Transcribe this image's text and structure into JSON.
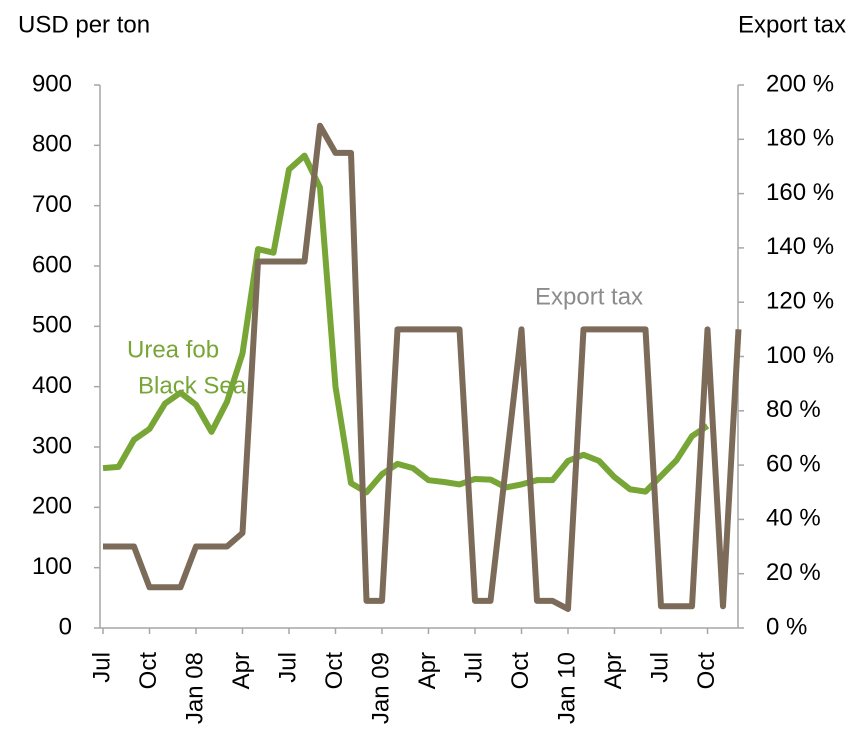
{
  "chart_data": {
    "type": "line",
    "y_label": "USD per ton",
    "y2_label": "Export tax",
    "annotations": [
      "Urea fob",
      "Black Sea",
      "Export tax"
    ],
    "categories": [
      "Jul",
      null,
      null,
      "Oct",
      null,
      null,
      "Jan 08",
      null,
      null,
      "Apr",
      null,
      null,
      "Jul",
      null,
      null,
      "Oct",
      null,
      null,
      "Jan 09",
      null,
      null,
      "Apr",
      null,
      null,
      "Jul",
      null,
      null,
      "Oct",
      null,
      null,
      "Jan 10",
      null,
      null,
      "Apr",
      null,
      null,
      "Jul",
      null,
      null,
      "Oct",
      null,
      null
    ],
    "series": [
      {
        "name": "Urea fob Black Sea",
        "color": "#77a636",
        "axis": "y",
        "values": [
          265,
          267,
          312,
          330,
          372,
          390,
          370,
          325,
          375,
          455,
          628,
          622,
          760,
          783,
          730,
          400,
          240,
          225,
          255,
          272,
          265,
          245,
          242,
          238,
          247,
          246,
          233,
          238,
          245,
          245,
          277,
          287,
          277,
          250,
          230,
          226,
          252,
          278,
          318,
          335,
          null,
          null
        ]
      },
      {
        "name": "Export tax",
        "color": "#7d6b5a",
        "axis": "y2",
        "values": [
          30,
          30,
          30,
          15,
          15,
          15,
          30,
          30,
          30,
          35,
          135,
          135,
          135,
          135,
          185,
          175,
          175,
          10,
          10,
          110,
          110,
          110,
          110,
          110,
          10,
          10,
          60,
          110,
          10,
          10,
          7,
          110,
          110,
          110,
          110,
          110,
          8,
          8,
          8,
          110,
          8,
          110
        ]
      }
    ],
    "ylim": [
      0,
      900
    ],
    "yticks": [
      0,
      100,
      200,
      300,
      400,
      500,
      600,
      700,
      800,
      900
    ],
    "y2lim": [
      0,
      200
    ],
    "y2ticks": [
      {
        "value": 0,
        "label": "0 %"
      },
      {
        "value": 20,
        "label": "20 %"
      },
      {
        "value": 40,
        "label": "40 %"
      },
      {
        "value": 60,
        "label": "60 %"
      },
      {
        "value": 80,
        "label": "80 %"
      },
      {
        "value": 100,
        "label": "100 %"
      },
      {
        "value": 120,
        "label": "120 %"
      },
      {
        "value": 140,
        "label": "140 %"
      },
      {
        "value": 160,
        "label": "160 %"
      },
      {
        "value": 180,
        "label": "180 %"
      },
      {
        "value": 200,
        "label": "200 %"
      }
    ],
    "grid": false
  }
}
